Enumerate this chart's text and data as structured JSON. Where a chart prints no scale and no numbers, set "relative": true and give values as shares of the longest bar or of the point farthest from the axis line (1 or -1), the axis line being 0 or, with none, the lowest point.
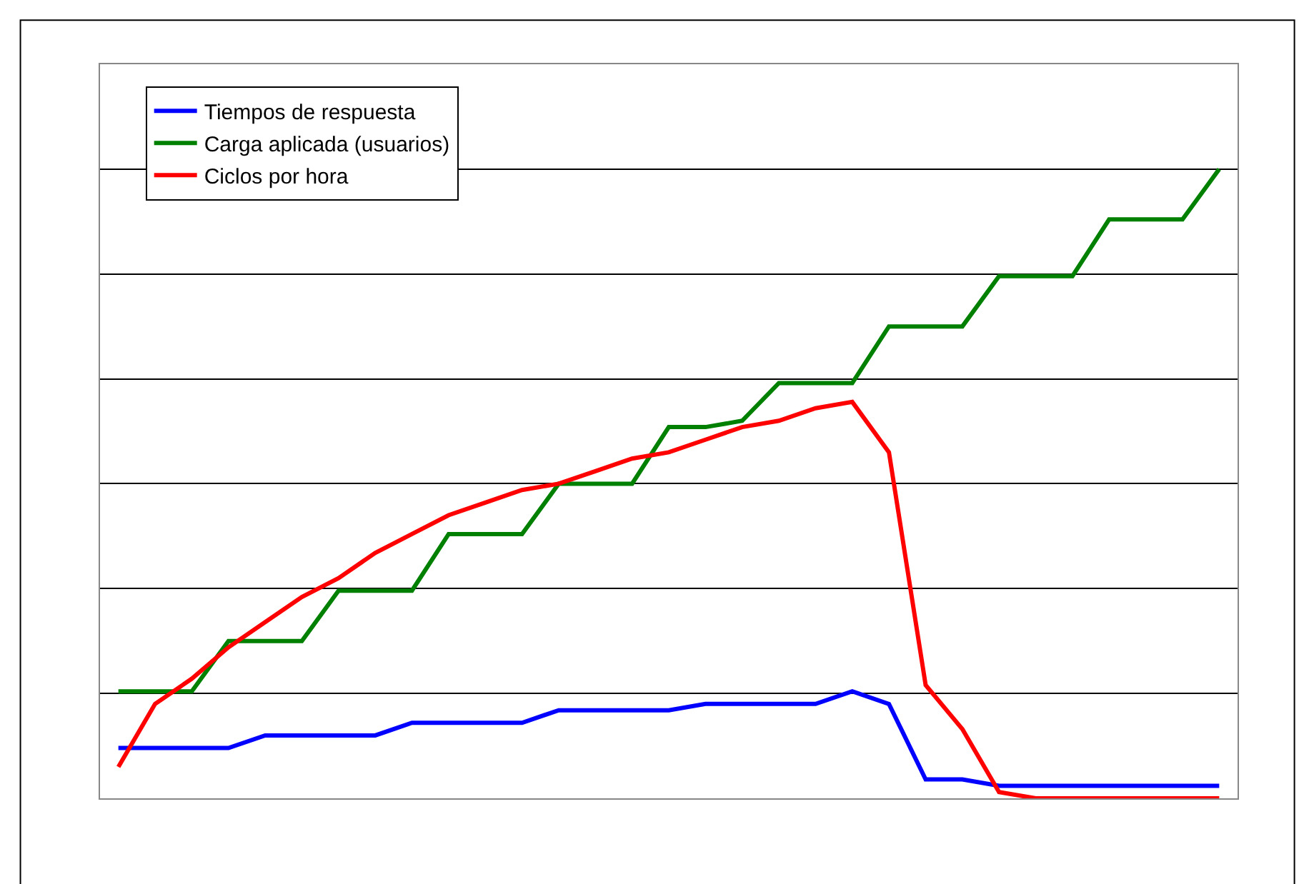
{
  "chart_data": {
    "type": "line",
    "relative": true,
    "grid": "y",
    "legend": "top left",
    "marker": "none",
    "line_style": "solid",
    "categories": [
      null,
      null,
      null,
      null,
      null,
      null,
      null,
      null,
      null,
      null,
      null,
      null,
      null,
      null,
      null,
      null,
      null,
      null,
      null,
      null,
      null,
      null,
      null,
      null,
      null,
      null,
      null,
      null,
      null,
      null,
      null
    ],
    "series": [
      {
        "name": "Tiempos de respuesta",
        "color": "#0000ff",
        "values": [
          0.08,
          0.08,
          0.08,
          0.08,
          0.1,
          0.1,
          0.1,
          0.1,
          0.12,
          0.12,
          0.12,
          0.12,
          0.14,
          0.14,
          0.14,
          0.14,
          0.15,
          0.15,
          0.15,
          0.15,
          0.17,
          0.15,
          0.03,
          0.03,
          0.02,
          0.02,
          0.02,
          0.02,
          0.02,
          0.02,
          0.02
        ]
      },
      {
        "name": "Carga aplicada (usuarios)",
        "color": "#008000",
        "values": [
          0.17,
          0.17,
          0.17,
          0.25,
          0.25,
          0.25,
          0.33,
          0.33,
          0.33,
          0.42,
          0.42,
          0.42,
          0.5,
          0.5,
          0.5,
          0.59,
          0.59,
          0.6,
          0.66,
          0.66,
          0.66,
          0.75,
          0.75,
          0.75,
          0.83,
          0.83,
          0.83,
          0.92,
          0.92,
          0.92,
          1
        ]
      },
      {
        "name": "Ciclos por hora",
        "color": "#ff0000",
        "values": [
          0.05,
          0.15,
          0.19,
          0.24,
          0.28,
          0.32,
          0.35,
          0.39,
          0.42,
          0.45,
          0.47,
          0.49,
          0.5,
          0.52,
          0.54,
          0.55,
          0.57,
          0.59,
          0.6,
          0.62,
          0.63,
          0.55,
          0.18,
          0.11,
          0.01,
          0,
          0,
          0,
          0,
          0,
          0
        ]
      }
    ]
  }
}
